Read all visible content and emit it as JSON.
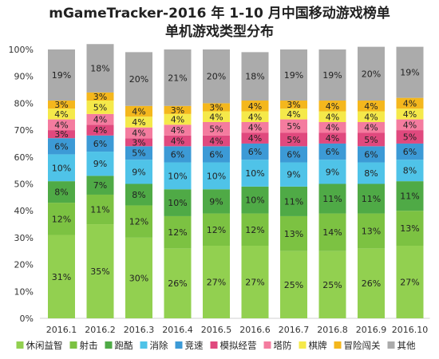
{
  "chart_data": {
    "type": "bar",
    "stacked": true,
    "title": "mGameTracker-2016 年 1-10 月中国移动游戏榜单",
    "subtitle": "单机游戏类型分布",
    "categories": [
      "2016.1",
      "2016.2",
      "2016.3",
      "2016.4",
      "2016.5",
      "2016.6",
      "2016.7",
      "2016.8",
      "2016.9",
      "2016.10"
    ],
    "ylim": [
      0,
      100
    ],
    "y_ticks": [
      "0%",
      "10%",
      "20%",
      "30%",
      "40%",
      "50%",
      "60%",
      "70%",
      "80%",
      "90%",
      "100%"
    ],
    "legend_position": "bottom",
    "grid": false,
    "series": [
      {
        "name": "休闲益智",
        "color": "#92D050",
        "values": [
          31,
          35,
          30,
          26,
          27,
          27,
          25,
          25,
          26,
          27
        ]
      },
      {
        "name": "射击",
        "color": "#7CC242",
        "values": [
          12,
          11,
          12,
          12,
          12,
          12,
          13,
          14,
          13,
          13
        ]
      },
      {
        "name": "跑酷",
        "color": "#4FAA46",
        "values": [
          8,
          7,
          8,
          10,
          9,
          10,
          11,
          11,
          11,
          11
        ]
      },
      {
        "name": "消除",
        "color": "#4FC3E8",
        "values": [
          10,
          9,
          9,
          10,
          10,
          10,
          9,
          9,
          8,
          8
        ]
      },
      {
        "name": "竞速",
        "color": "#3C9AD6",
        "values": [
          6,
          6,
          5,
          6,
          6,
          6,
          6,
          6,
          6,
          6
        ]
      },
      {
        "name": "模拟经营",
        "color": "#E0497E",
        "values": [
          3,
          4,
          3,
          4,
          4,
          4,
          5,
          4,
          5,
          5
        ]
      },
      {
        "name": "塔防",
        "color": "#F47C9F",
        "values": [
          4,
          4,
          4,
          4,
          5,
          4,
          5,
          4,
          4,
          4
        ]
      },
      {
        "name": "棋牌",
        "color": "#F5E94A",
        "values": [
          4,
          5,
          4,
          4,
          4,
          4,
          4,
          4,
          4,
          4
        ]
      },
      {
        "name": "冒险闯关",
        "color": "#F4B71D",
        "values": [
          3,
          3,
          4,
          3,
          3,
          4,
          3,
          4,
          4,
          4
        ]
      },
      {
        "name": "其他",
        "color": "#ABABAB",
        "values": [
          19,
          18,
          20,
          21,
          20,
          18,
          19,
          19,
          20,
          19
        ]
      }
    ]
  }
}
